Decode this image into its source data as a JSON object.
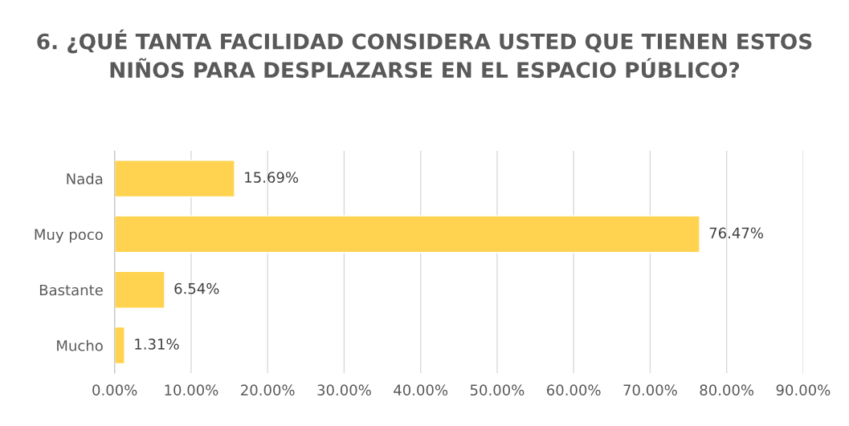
{
  "chart_data": {
    "type": "bar",
    "orientation": "horizontal",
    "title": "6. ¿QUÉ TANTA FACILIDAD CONSIDERA USTED QUE TIENEN ESTOS NIÑOS PARA DESPLAZARSE EN EL ESPACIO PÚBLICO?",
    "categories": [
      "Nada",
      "Muy poco",
      "Bastante",
      "Mucho"
    ],
    "values": [
      15.69,
      76.47,
      6.54,
      1.31
    ],
    "value_labels": [
      "15.69%",
      "76.47%",
      "6.54%",
      "1.31%"
    ],
    "color": "#ffd34f",
    "xlim": [
      0,
      90
    ],
    "xticks": [
      {
        "value": 0,
        "label": "0.00%"
      },
      {
        "value": 10,
        "label": "10.00%"
      },
      {
        "value": 20,
        "label": "20.00%"
      },
      {
        "value": 30,
        "label": "30.00%"
      },
      {
        "value": 40,
        "label": "40.00%"
      },
      {
        "value": 50,
        "label": "50.00%"
      },
      {
        "value": 60,
        "label": "60.00%"
      },
      {
        "value": 70,
        "label": "70.00%"
      },
      {
        "value": 80,
        "label": "80.00%"
      },
      {
        "value": 90,
        "label": "90.00%"
      }
    ],
    "grid": "x"
  }
}
